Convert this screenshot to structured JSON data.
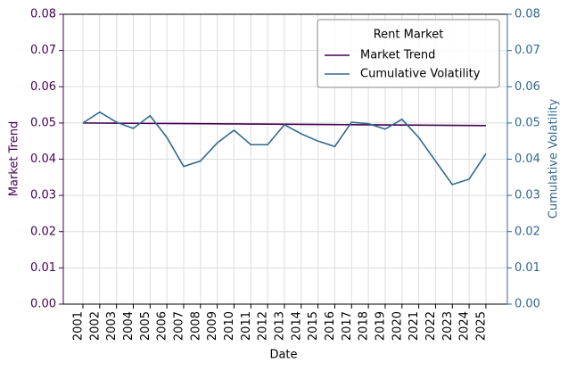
{
  "chart_data": {
    "type": "line",
    "xlabel": "Date",
    "ylabel": "Market Trend",
    "y2label": "Cumulative Volatility",
    "legend_title": "Rent Market",
    "legend": "upper right",
    "grid": true,
    "categories": [
      "2001",
      "2002",
      "2003",
      "2004",
      "2005",
      "2006",
      "2007",
      "2008",
      "2009",
      "2010",
      "2011",
      "2012",
      "2013",
      "2014",
      "2015",
      "2016",
      "2017",
      "2018",
      "2019",
      "2020",
      "2021",
      "2022",
      "2023",
      "2024",
      "2025"
    ],
    "ylim": [
      0,
      0.08
    ],
    "yticks": [
      {
        "value": 0,
        "label": "0.00"
      },
      {
        "value": 0.01,
        "label": "0.01"
      },
      {
        "value": 0.02,
        "label": "0.02"
      },
      {
        "value": 0.03,
        "label": "0.03"
      },
      {
        "value": 0.04,
        "label": "0.04"
      },
      {
        "value": 0.05,
        "label": "0.05"
      },
      {
        "value": 0.06,
        "label": "0.06"
      },
      {
        "value": 0.07,
        "label": "0.07"
      },
      {
        "value": 0.08,
        "label": "0.08"
      }
    ],
    "y2lim": [
      0,
      0.08
    ],
    "y2ticks": [
      {
        "value": 0,
        "label": "0.00"
      },
      {
        "value": 0.01,
        "label": "0.01"
      },
      {
        "value": 0.02,
        "label": "0.02"
      },
      {
        "value": 0.03,
        "label": "0.03"
      },
      {
        "value": 0.04,
        "label": "0.04"
      },
      {
        "value": 0.05,
        "label": "0.05"
      },
      {
        "value": 0.06,
        "label": "0.06"
      },
      {
        "value": 0.07,
        "label": "0.07"
      },
      {
        "value": 0.08,
        "label": "0.08"
      }
    ],
    "y_color": "#440154",
    "y2_color": "#31688e",
    "series": [
      {
        "name": "Market Trend",
        "color": "#440154",
        "values": [
          0.05,
          0.04997,
          0.04994,
          0.04991,
          0.04988,
          0.04985,
          0.04982,
          0.04979,
          0.04976,
          0.04973,
          0.0497,
          0.04967,
          0.04964,
          0.04961,
          0.04958,
          0.04955,
          0.04952,
          0.04949,
          0.04946,
          0.04943,
          0.0494,
          0.04937,
          0.04934,
          0.04931,
          0.04928
        ]
      },
      {
        "name": "Cumulative Volatility",
        "color": "#31688e",
        "axis": "y2",
        "values": [
          0.05,
          0.053,
          0.0502,
          0.0485,
          0.052,
          0.046,
          0.038,
          0.0395,
          0.0445,
          0.048,
          0.044,
          0.044,
          0.0495,
          0.047,
          0.045,
          0.0435,
          0.0502,
          0.0498,
          0.0483,
          0.051,
          0.046,
          0.0395,
          0.033,
          0.0345,
          0.0415
        ]
      }
    ]
  }
}
